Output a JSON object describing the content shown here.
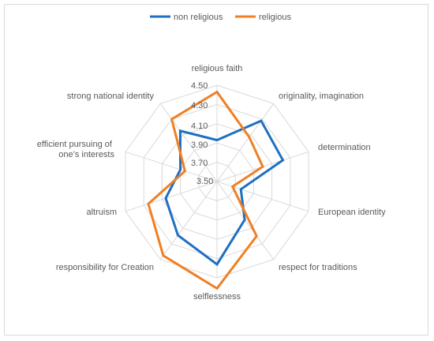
{
  "chart_data": {
    "type": "radar",
    "title": "",
    "categories": [
      "religious faith",
      "originality, imagination",
      "determination",
      "European identity",
      "respect for traditions",
      "selflessness",
      "responsibility for Creation",
      "altruism",
      "efficient pursuing of one’s interests",
      "strong national identity"
    ],
    "axis": {
      "min": 3.5,
      "max": 4.5,
      "ticks": [
        "3.50",
        "3.70",
        "3.90",
        "4.10",
        "4.30",
        "4.50"
      ],
      "grid": true
    },
    "legend": {
      "position": "top"
    },
    "series": [
      {
        "name": "non religious",
        "color": "#1f6fc1",
        "values": [
          3.93,
          4.28,
          4.22,
          3.76,
          3.99,
          4.36,
          4.19,
          4.06,
          3.9,
          4.15
        ]
      },
      {
        "name": "religious",
        "color": "#f07f23",
        "values": [
          4.43,
          4.07,
          4.0,
          3.67,
          4.2,
          4.61,
          4.45,
          4.25,
          3.85,
          4.3
        ]
      }
    ]
  }
}
